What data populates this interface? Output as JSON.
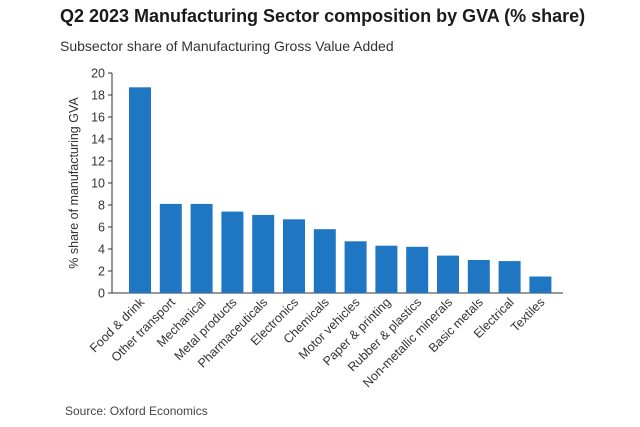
{
  "chart_data": {
    "type": "bar",
    "title": "Q2 2023 Manufacturing Sector composition by GVA (% share)",
    "subtitle": "Subsector share of Manufacturing Gross Value Added",
    "xlabel": "",
    "ylabel": "% share of manufacturing GVA",
    "source": "Source: Oxford Economics",
    "categories": [
      "Food & drink",
      "Other transport",
      "Mechanical",
      "Metal products",
      "Pharmaceuticals",
      "Electronics",
      "Chemicals",
      "Motor vehicles",
      "Paper & printing",
      "Rubber & plastics",
      "Non-metallic minerals",
      "Basic metals",
      "Electrical",
      "Textiles"
    ],
    "values": [
      18.7,
      8.1,
      8.1,
      7.4,
      7.1,
      6.7,
      5.8,
      4.7,
      4.3,
      4.2,
      3.4,
      3.0,
      2.9,
      1.5
    ],
    "ylim": [
      0,
      20
    ],
    "yticks": [
      0,
      2,
      4,
      6,
      8,
      10,
      12,
      14,
      16,
      18,
      20
    ],
    "grid": false,
    "bar_color": "#1f77c4"
  }
}
